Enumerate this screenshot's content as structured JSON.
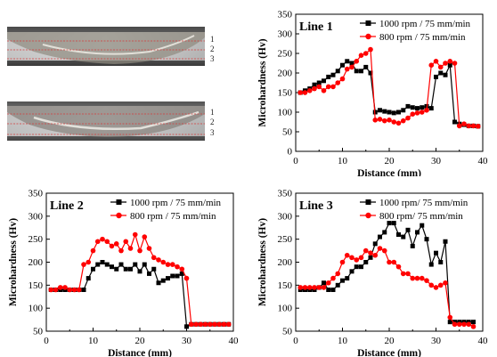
{
  "micrographs": [
    {
      "labels": [
        "1",
        "2",
        "3"
      ]
    },
    {
      "labels": [
        "1",
        "2",
        "3"
      ]
    }
  ],
  "colors": {
    "series1000": "#000000",
    "series800": "#ff0000",
    "ref_line": "#d43c3c"
  },
  "chart_data": [
    {
      "type": "line",
      "title": "Line 1",
      "xlabel": "Distance (mm)",
      "ylabel": "Microhardness (Hv)",
      "xlim": [
        0,
        40
      ],
      "ylim": [
        0,
        350
      ],
      "xticks": [
        0,
        10,
        20,
        30,
        40
      ],
      "yticks": [
        0,
        50,
        100,
        150,
        200,
        250,
        300,
        350
      ],
      "legend_position": "top-right",
      "series": [
        {
          "name": "1000 rpm / 75 mm/min",
          "color": "#000000",
          "marker": "square",
          "x": [
            1,
            2,
            3,
            4,
            5,
            6,
            7,
            8,
            9,
            10,
            11,
            12,
            13,
            14,
            15,
            16,
            17,
            18,
            19,
            20,
            21,
            22,
            23,
            24,
            25,
            26,
            27,
            28,
            29,
            30,
            31,
            32,
            33,
            34,
            35,
            36,
            37,
            38,
            39
          ],
          "y": [
            150,
            155,
            160,
            170,
            175,
            180,
            190,
            195,
            205,
            220,
            230,
            225,
            205,
            205,
            215,
            200,
            100,
            105,
            102,
            100,
            98,
            100,
            105,
            115,
            112,
            110,
            112,
            115,
            110,
            190,
            200,
            195,
            220,
            75,
            70,
            68,
            65,
            65,
            64
          ]
        },
        {
          "name": "800 rpm / 75 mm/min",
          "color": "#ff0000",
          "marker": "circle",
          "x": [
            1,
            2,
            3,
            4,
            5,
            6,
            7,
            8,
            9,
            10,
            11,
            12,
            13,
            14,
            15,
            16,
            17,
            18,
            19,
            20,
            21,
            22,
            23,
            24,
            25,
            26,
            27,
            28,
            29,
            30,
            31,
            32,
            33,
            34,
            35,
            36,
            37,
            38,
            39
          ],
          "y": [
            150,
            150,
            155,
            160,
            165,
            155,
            165,
            165,
            175,
            185,
            210,
            215,
            230,
            245,
            250,
            260,
            80,
            82,
            78,
            80,
            75,
            72,
            78,
            85,
            95,
            98,
            100,
            105,
            220,
            230,
            215,
            225,
            230,
            225,
            65,
            70,
            65,
            65,
            64
          ]
        }
      ]
    },
    {
      "type": "line",
      "title": "Line 2",
      "xlabel": "Distance (mm)",
      "ylabel": "Microhardness (Hv)",
      "xlim": [
        0,
        40
      ],
      "ylim": [
        50,
        350
      ],
      "xticks": [
        0,
        10,
        20,
        30,
        40
      ],
      "yticks": [
        50,
        100,
        150,
        200,
        250,
        300,
        350
      ],
      "legend_position": "top-right",
      "series": [
        {
          "name": "1000 rpm / 75 mm/min",
          "color": "#000000",
          "marker": "square",
          "x": [
            1,
            2,
            3,
            4,
            5,
            6,
            7,
            8,
            9,
            10,
            11,
            12,
            13,
            14,
            15,
            16,
            17,
            18,
            19,
            20,
            21,
            22,
            23,
            24,
            25,
            26,
            27,
            28,
            29,
            30,
            31,
            32,
            33,
            34,
            35,
            36,
            37,
            38,
            39
          ],
          "y": [
            140,
            140,
            140,
            140,
            140,
            140,
            140,
            140,
            165,
            185,
            195,
            200,
            195,
            190,
            185,
            195,
            185,
            185,
            195,
            180,
            195,
            175,
            185,
            155,
            160,
            165,
            170,
            170,
            175,
            60,
            65,
            65,
            65,
            65,
            65,
            65,
            65,
            65,
            65
          ]
        },
        {
          "name": "800 rpm / 75 mm/min",
          "color": "#ff0000",
          "marker": "circle",
          "x": [
            1,
            2,
            3,
            4,
            5,
            6,
            7,
            8,
            9,
            10,
            11,
            12,
            13,
            14,
            15,
            16,
            17,
            18,
            19,
            20,
            21,
            22,
            23,
            24,
            25,
            26,
            27,
            28,
            29,
            30,
            31,
            32,
            33,
            34,
            35,
            36,
            37,
            38,
            39
          ],
          "y": [
            140,
            140,
            145,
            145,
            140,
            140,
            140,
            195,
            200,
            225,
            245,
            250,
            245,
            235,
            240,
            225,
            245,
            230,
            260,
            225,
            255,
            230,
            210,
            205,
            200,
            195,
            195,
            190,
            185,
            165,
            65,
            65,
            65,
            65,
            65,
            65,
            65,
            65,
            65
          ]
        }
      ]
    },
    {
      "type": "line",
      "title": "Line 3",
      "xlabel": "Distance (mm)",
      "ylabel": "Microhardness (Hv)",
      "xlim": [
        0,
        40
      ],
      "ylim": [
        50,
        350
      ],
      "xticks": [
        0,
        10,
        20,
        30,
        40
      ],
      "yticks": [
        50,
        100,
        150,
        200,
        250,
        300,
        350
      ],
      "legend_position": "top-right",
      "series": [
        {
          "name": "1000 rpm/ 75 mm/min",
          "color": "#000000",
          "marker": "square",
          "x": [
            1,
            2,
            3,
            4,
            5,
            6,
            7,
            8,
            9,
            10,
            11,
            12,
            13,
            14,
            15,
            16,
            17,
            18,
            19,
            20,
            21,
            22,
            23,
            24,
            25,
            26,
            27,
            28,
            29,
            30,
            31,
            32,
            33,
            34,
            35,
            36,
            37,
            38
          ],
          "y": [
            140,
            140,
            140,
            140,
            145,
            155,
            140,
            140,
            150,
            160,
            165,
            180,
            190,
            190,
            200,
            210,
            240,
            255,
            265,
            285,
            285,
            260,
            255,
            270,
            235,
            265,
            280,
            250,
            195,
            220,
            200,
            245,
            70,
            70,
            70,
            70,
            70,
            70
          ]
        },
        {
          "name": "800 rpm/ 75 mm/min",
          "color": "#ff0000",
          "marker": "circle",
          "x": [
            1,
            2,
            3,
            4,
            5,
            6,
            7,
            8,
            9,
            10,
            11,
            12,
            13,
            14,
            15,
            16,
            17,
            18,
            19,
            20,
            21,
            22,
            23,
            24,
            25,
            26,
            27,
            28,
            29,
            30,
            31,
            32,
            33,
            34,
            35,
            36,
            37,
            38
          ],
          "y": [
            145,
            145,
            145,
            145,
            145,
            145,
            155,
            165,
            175,
            200,
            215,
            210,
            205,
            210,
            225,
            220,
            215,
            230,
            225,
            200,
            200,
            190,
            175,
            175,
            165,
            165,
            165,
            160,
            150,
            145,
            150,
            155,
            80,
            65,
            65,
            65,
            65,
            60
          ]
        }
      ]
    }
  ]
}
